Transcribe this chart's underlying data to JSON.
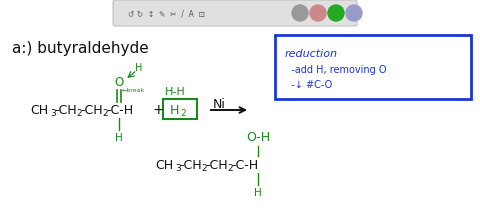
{
  "bg_color": "#ffffff",
  "toolbar_bg": "#e0e0e0",
  "green": "#1a8a1a",
  "blue": "#1a35d4",
  "black": "#111111",
  "reduction_title": "reduction",
  "reduction_line1": "  -add H, removing O",
  "reduction_line2": "  -↓ #C-O"
}
